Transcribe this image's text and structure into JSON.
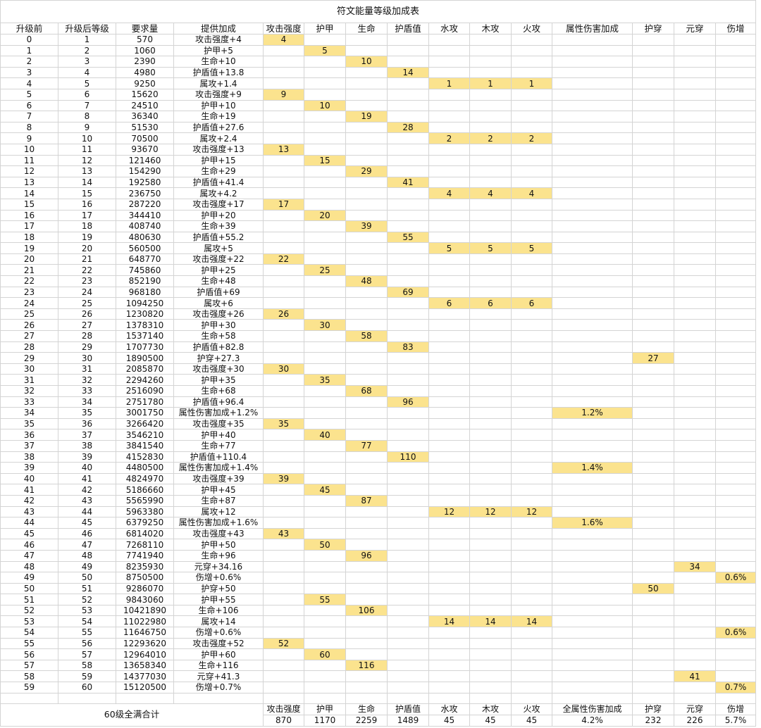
{
  "title": "符文能量等级加成表",
  "headers": [
    "升级前",
    "升级后等级",
    "要求量",
    "提供加成",
    "攻击强度",
    "护甲",
    "生命",
    "护盾值",
    "水攻",
    "木攻",
    "火攻",
    "属性伤害加成",
    "护穿",
    "元穿",
    "伤增"
  ],
  "rows": [
    {
      "before": "0",
      "after": "1",
      "req": "570",
      "bonus": "攻击强度+4",
      "cells": {
        "4": "4"
      }
    },
    {
      "before": "1",
      "after": "2",
      "req": "1060",
      "bonus": "护甲+5",
      "cells": {
        "5": "5"
      }
    },
    {
      "before": "2",
      "after": "3",
      "req": "2390",
      "bonus": "生命+10",
      "cells": {
        "6": "10"
      }
    },
    {
      "before": "3",
      "after": "4",
      "req": "4980",
      "bonus": "护盾值+13.8",
      "cells": {
        "7": "14"
      }
    },
    {
      "before": "4",
      "after": "5",
      "req": "9250",
      "bonus": "属攻+1.4",
      "cells": {
        "8": "1",
        "9": "1",
        "10": "1"
      }
    },
    {
      "before": "5",
      "after": "6",
      "req": "15620",
      "bonus": "攻击强度+9",
      "cells": {
        "4": "9"
      }
    },
    {
      "before": "6",
      "after": "7",
      "req": "24510",
      "bonus": "护甲+10",
      "cells": {
        "5": "10"
      }
    },
    {
      "before": "7",
      "after": "8",
      "req": "36340",
      "bonus": "生命+19",
      "cells": {
        "6": "19"
      }
    },
    {
      "before": "8",
      "after": "9",
      "req": "51530",
      "bonus": "护盾值+27.6",
      "cells": {
        "7": "28"
      }
    },
    {
      "before": "9",
      "after": "10",
      "req": "70500",
      "bonus": "属攻+2.4",
      "cells": {
        "8": "2",
        "9": "2",
        "10": "2"
      }
    },
    {
      "before": "10",
      "after": "11",
      "req": "93670",
      "bonus": "攻击强度+13",
      "cells": {
        "4": "13"
      }
    },
    {
      "before": "11",
      "after": "12",
      "req": "121460",
      "bonus": "护甲+15",
      "cells": {
        "5": "15"
      }
    },
    {
      "before": "12",
      "after": "13",
      "req": "154290",
      "bonus": "生命+29",
      "cells": {
        "6": "29"
      }
    },
    {
      "before": "13",
      "after": "14",
      "req": "192580",
      "bonus": "护盾值+41.4",
      "cells": {
        "7": "41"
      }
    },
    {
      "before": "14",
      "after": "15",
      "req": "236750",
      "bonus": "属攻+4.2",
      "cells": {
        "8": "4",
        "9": "4",
        "10": "4"
      }
    },
    {
      "before": "15",
      "after": "16",
      "req": "287220",
      "bonus": "攻击强度+17",
      "cells": {
        "4": "17"
      }
    },
    {
      "before": "16",
      "after": "17",
      "req": "344410",
      "bonus": "护甲+20",
      "cells": {
        "5": "20"
      }
    },
    {
      "before": "17",
      "after": "18",
      "req": "408740",
      "bonus": "生命+39",
      "cells": {
        "6": "39"
      }
    },
    {
      "before": "18",
      "after": "19",
      "req": "480630",
      "bonus": "护盾值+55.2",
      "cells": {
        "7": "55"
      }
    },
    {
      "before": "19",
      "after": "20",
      "req": "560500",
      "bonus": "属攻+5",
      "cells": {
        "8": "5",
        "9": "5",
        "10": "5"
      }
    },
    {
      "before": "20",
      "after": "21",
      "req": "648770",
      "bonus": "攻击强度+22",
      "cells": {
        "4": "22"
      }
    },
    {
      "before": "21",
      "after": "22",
      "req": "745860",
      "bonus": "护甲+25",
      "cells": {
        "5": "25"
      }
    },
    {
      "before": "22",
      "after": "23",
      "req": "852190",
      "bonus": "生命+48",
      "cells": {
        "6": "48"
      }
    },
    {
      "before": "23",
      "after": "24",
      "req": "968180",
      "bonus": "护盾值+69",
      "cells": {
        "7": "69"
      }
    },
    {
      "before": "24",
      "after": "25",
      "req": "1094250",
      "bonus": "属攻+6",
      "cells": {
        "8": "6",
        "9": "6",
        "10": "6"
      }
    },
    {
      "before": "25",
      "after": "26",
      "req": "1230820",
      "bonus": "攻击强度+26",
      "cells": {
        "4": "26"
      }
    },
    {
      "before": "26",
      "after": "27",
      "req": "1378310",
      "bonus": "护甲+30",
      "cells": {
        "5": "30"
      }
    },
    {
      "before": "27",
      "after": "28",
      "req": "1537140",
      "bonus": "生命+58",
      "cells": {
        "6": "58"
      }
    },
    {
      "before": "28",
      "after": "29",
      "req": "1707730",
      "bonus": "护盾值+82.8",
      "cells": {
        "7": "83"
      }
    },
    {
      "before": "29",
      "after": "30",
      "req": "1890500",
      "bonus": "护穿+27.3",
      "cells": {
        "12": "27"
      }
    },
    {
      "before": "30",
      "after": "31",
      "req": "2085870",
      "bonus": "攻击强度+30",
      "cells": {
        "4": "30"
      }
    },
    {
      "before": "31",
      "after": "32",
      "req": "2294260",
      "bonus": "护甲+35",
      "cells": {
        "5": "35"
      }
    },
    {
      "before": "32",
      "after": "33",
      "req": "2516090",
      "bonus": "生命+68",
      "cells": {
        "6": "68"
      }
    },
    {
      "before": "33",
      "after": "34",
      "req": "2751780",
      "bonus": "护盾值+96.4",
      "cells": {
        "7": "96"
      }
    },
    {
      "before": "34",
      "after": "35",
      "req": "3001750",
      "bonus": "属性伤害加成+1.2%",
      "cells": {
        "11": "1.2%"
      }
    },
    {
      "before": "35",
      "after": "36",
      "req": "3266420",
      "bonus": "攻击强度+35",
      "cells": {
        "4": "35"
      }
    },
    {
      "before": "36",
      "after": "37",
      "req": "3546210",
      "bonus": "护甲+40",
      "cells": {
        "5": "40"
      }
    },
    {
      "before": "37",
      "after": "38",
      "req": "3841540",
      "bonus": "生命+77",
      "cells": {
        "6": "77"
      }
    },
    {
      "before": "38",
      "after": "39",
      "req": "4152830",
      "bonus": "护盾值+110.4",
      "cells": {
        "7": "110"
      }
    },
    {
      "before": "39",
      "after": "40",
      "req": "4480500",
      "bonus": "属性伤害加成+1.4%",
      "cells": {
        "11": "1.4%"
      }
    },
    {
      "before": "40",
      "after": "41",
      "req": "4824970",
      "bonus": "攻击强度+39",
      "cells": {
        "4": "39"
      }
    },
    {
      "before": "41",
      "after": "42",
      "req": "5186660",
      "bonus": "护甲+45",
      "cells": {
        "5": "45"
      }
    },
    {
      "before": "42",
      "after": "43",
      "req": "5565990",
      "bonus": "生命+87",
      "cells": {
        "6": "87"
      }
    },
    {
      "before": "43",
      "after": "44",
      "req": "5963380",
      "bonus": "属攻+12",
      "cells": {
        "8": "12",
        "9": "12",
        "10": "12"
      }
    },
    {
      "before": "44",
      "after": "45",
      "req": "6379250",
      "bonus": "属性伤害加成+1.6%",
      "cells": {
        "11": "1.6%"
      }
    },
    {
      "before": "45",
      "after": "46",
      "req": "6814020",
      "bonus": "攻击强度+43",
      "cells": {
        "4": "43"
      }
    },
    {
      "before": "46",
      "after": "47",
      "req": "7268110",
      "bonus": "护甲+50",
      "cells": {
        "5": "50"
      }
    },
    {
      "before": "47",
      "after": "48",
      "req": "7741940",
      "bonus": "生命+96",
      "cells": {
        "6": "96"
      }
    },
    {
      "before": "48",
      "after": "49",
      "req": "8235930",
      "bonus": "元穿+34.16",
      "cells": {
        "13": "34"
      }
    },
    {
      "before": "49",
      "after": "50",
      "req": "8750500",
      "bonus": "伤增+0.6%",
      "cells": {
        "14": "0.6%"
      }
    },
    {
      "before": "50",
      "after": "51",
      "req": "9286070",
      "bonus": "护穿+50",
      "cells": {
        "12": "50"
      }
    },
    {
      "before": "51",
      "after": "52",
      "req": "9843060",
      "bonus": "护甲+55",
      "cells": {
        "5": "55"
      }
    },
    {
      "before": "52",
      "after": "53",
      "req": "10421890",
      "bonus": "生命+106",
      "cells": {
        "6": "106"
      }
    },
    {
      "before": "53",
      "after": "54",
      "req": "11022980",
      "bonus": "属攻+14",
      "cells": {
        "8": "14",
        "9": "14",
        "10": "14"
      }
    },
    {
      "before": "54",
      "after": "55",
      "req": "11646750",
      "bonus": "伤增+0.6%",
      "cells": {
        "14": "0.6%"
      }
    },
    {
      "before": "55",
      "after": "56",
      "req": "12293620",
      "bonus": "攻击强度+52",
      "cells": {
        "4": "52"
      }
    },
    {
      "before": "56",
      "after": "57",
      "req": "12964010",
      "bonus": "护甲+60",
      "cells": {
        "5": "60"
      }
    },
    {
      "before": "57",
      "after": "58",
      "req": "13658340",
      "bonus": "生命+116",
      "cells": {
        "6": "116"
      }
    },
    {
      "before": "58",
      "after": "59",
      "req": "14377030",
      "bonus": "元穿+41.3",
      "cells": {
        "13": "41"
      }
    },
    {
      "before": "59",
      "after": "60",
      "req": "15120500",
      "bonus": "伤增+0.7%",
      "cells": {
        "14": "0.7%"
      }
    }
  ],
  "summary": {
    "label": "60级全满合计",
    "headers": [
      "攻击强度",
      "护甲",
      "生命",
      "护盾值",
      "水攻",
      "木攻",
      "火攻",
      "全属性伤害加成",
      "护穿",
      "元穿",
      "伤增"
    ],
    "values": [
      "870",
      "1170",
      "2259",
      "1489",
      "45",
      "45",
      "45",
      "4.2%",
      "232",
      "226",
      "5.7%"
    ]
  },
  "colors": {
    "highlight": "#fbe38e",
    "grid": "#d4d4d4"
  }
}
